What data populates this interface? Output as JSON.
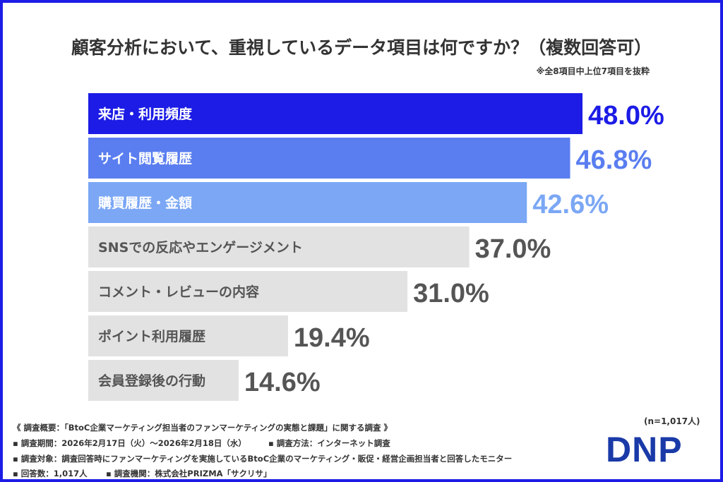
{
  "chart_data": {
    "type": "bar",
    "orientation": "horizontal",
    "title": "顧客分析において、重視しているデータ項目は何ですか？（複数回答可）",
    "note": "※全8項目中上位7項目を抜粋",
    "categories": [
      "来店・利用頻度",
      "サイト閲覧履歴",
      "購買履歴・金額",
      "SNSでの反応やエンゲージメント",
      "コメント・レビューの内容",
      "ポイント利用履歴",
      "会員登録後の行動"
    ],
    "values": [
      48.0,
      46.8,
      42.6,
      37.0,
      31.0,
      19.4,
      14.6
    ],
    "value_labels": [
      "48.0%",
      "46.8%",
      "42.6%",
      "37.0%",
      "31.0%",
      "19.4%",
      "14.6%"
    ],
    "unit": "%",
    "xlim": [
      0,
      48
    ],
    "grid": false,
    "bar_colors": [
      "#1c1ce6",
      "#5a7ef0",
      "#7ba7f5",
      "#e2e2e2",
      "#e2e2e2",
      "#e2e2e2",
      "#e2e2e2"
    ],
    "label_colors": [
      "#ffffff",
      "#ffffff",
      "#ffffff",
      "#555555",
      "#555555",
      "#555555",
      "#555555"
    ],
    "value_colors": [
      "#1c1ce6",
      "#5a7ef0",
      "#7ba7f5",
      "#555555",
      "#555555",
      "#555555",
      "#555555"
    ]
  },
  "footer": {
    "overview": "《 調査概要：「BtoC企業マーケティング担当者のファンマーケティングの実態と課題」に関する調査 》",
    "period": "▪ 調査期間：2026年2月17日（火）〜2026年2月18日（水）",
    "method": "▪ 調査方法：インターネット調査",
    "target": "▪ 調査対象：調査回答時にファンマーケティングを実施しているBtoC企業のマーケティング・販促・経営企画担当者と回答したモニター",
    "responses": "▪ 回答数：1,017人",
    "org": "▪ 調査機関：株式会社PRIZMA「サクリサ」",
    "n": "(n=1,017人)",
    "logo": "DNP"
  }
}
